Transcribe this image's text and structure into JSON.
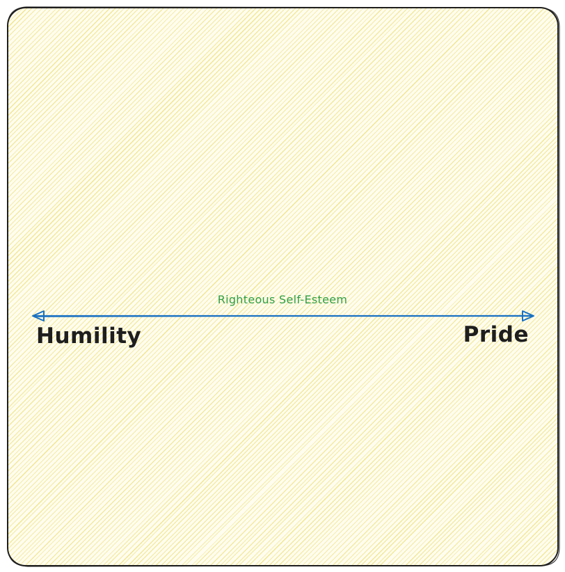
{
  "diagram": {
    "left_label": "Humility",
    "right_label": "Pride",
    "middle_label": "Righteous Self-Esteem",
    "colors": {
      "frame_stroke": "#1e1e1e",
      "hatch": "#f1e58a",
      "fill": "#fffdf0",
      "arrow": "#1971c2",
      "middle_text": "#2f9e44",
      "label_text": "#1e1e1e"
    }
  }
}
